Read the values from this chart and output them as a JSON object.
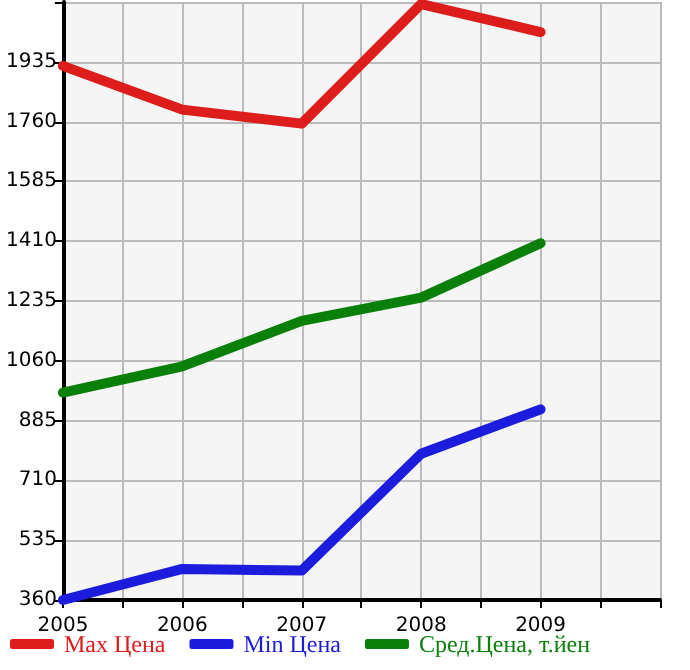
{
  "chart_data": {
    "type": "line",
    "x": [
      2005,
      2006,
      2007,
      2008,
      2009
    ],
    "series": [
      {
        "name": "Max Цена",
        "color": "#dd1c1c",
        "values": [
          1923,
          1795,
          1754,
          2104,
          2022
        ]
      },
      {
        "name": "Min Цена",
        "color": "#1c1cdd",
        "values": [
          360,
          451,
          446,
          788,
          918
        ]
      },
      {
        "name": "Сред.Цена, т.йен",
        "color": "#0a800a",
        "values": [
          967,
          1044,
          1177,
          1245,
          1404
        ]
      }
    ],
    "xlim": [
      2005,
      2010
    ],
    "xticks": [
      2005,
      {
        "value": 2005.5,
        "label": null
      },
      2006,
      {
        "value": 2006.5,
        "label": null
      },
      2007,
      {
        "value": 2007.5,
        "label": null
      },
      2008,
      {
        "value": 2008.5,
        "label": null
      },
      2009,
      {
        "value": 2009.5,
        "label": null
      },
      {
        "value": 2010,
        "label": null
      }
    ],
    "ylim": [
      360,
      2110
    ],
    "yticks": [
      360,
      535,
      710,
      885,
      1060,
      1235,
      1410,
      1585,
      1760,
      1935,
      {
        "value": 2110,
        "label": null
      }
    ],
    "grid": true,
    "legend": "bottom",
    "marker": "none",
    "line_style": "solid"
  }
}
